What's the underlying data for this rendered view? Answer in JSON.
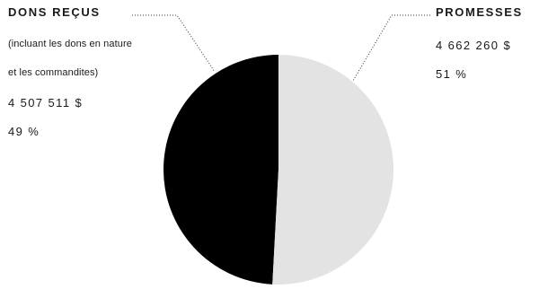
{
  "chart_data": {
    "type": "pie",
    "colors": [
      "#000000",
      "#e3e3e4"
    ],
    "leader_color": "#333333",
    "slices": [
      {
        "title": "DONS REÇUS",
        "subtitle_lines": [
          "(incluant les dons en nature",
          "et les commandites)"
        ],
        "amount_text": "4 507 511 $",
        "percent_text": "49 %",
        "value": 4507511,
        "percent": 49
      },
      {
        "title": "PROMESSES",
        "subtitle_lines": [],
        "amount_text": "4 662 260 $",
        "percent_text": "51 %",
        "value": 4662260,
        "percent": 51
      }
    ]
  }
}
